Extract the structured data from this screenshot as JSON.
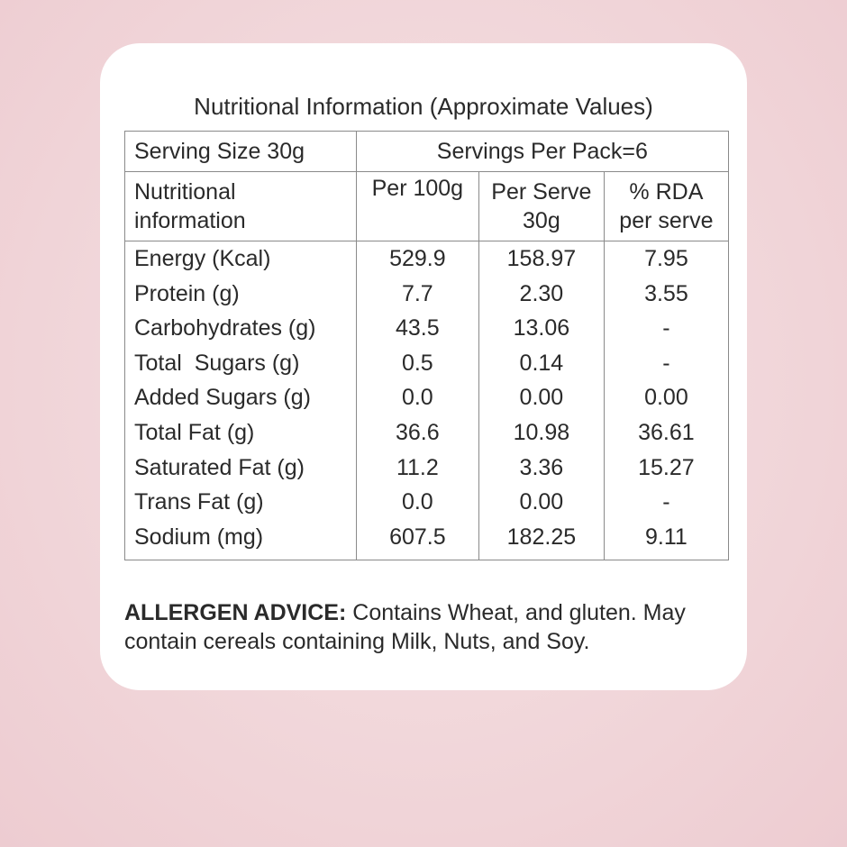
{
  "title": "Nutritional Information (Approximate Values)",
  "serving_size": "Serving Size 30g",
  "servings_per_pack": "Servings Per Pack=6",
  "headers": {
    "nutrient": [
      "Nutritional",
      "information"
    ],
    "per100": [
      "Per 100g"
    ],
    "perServe": [
      "Per Serve",
      "30g"
    ],
    "rda": [
      "% RDA",
      "per serve"
    ]
  },
  "rows": [
    {
      "name": "Energy (Kcal)",
      "per100": "529.9",
      "perServe": "158.97",
      "rda": "7.95"
    },
    {
      "name": "Protein (g)",
      "per100": "7.7",
      "perServe": "2.30",
      "rda": "3.55"
    },
    {
      "name": "Carbohydrates (g)",
      "per100": "43.5",
      "perServe": "13.06",
      "rda": "-"
    },
    {
      "name": "Total  Sugars (g)",
      "per100": "0.5",
      "perServe": "0.14",
      "rda": "-"
    },
    {
      "name": "Added Sugars (g)",
      "per100": "0.0",
      "perServe": "0.00",
      "rda": "0.00"
    },
    {
      "name": "Total Fat (g)",
      "per100": "36.6",
      "perServe": "10.98",
      "rda": "36.61"
    },
    {
      "name": "Saturated Fat (g)",
      "per100": "11.2",
      "perServe": "3.36",
      "rda": "15.27"
    },
    {
      "name": "Trans Fat (g)",
      "per100": "0.0",
      "perServe": "0.00",
      "rda": "-"
    },
    {
      "name": "Sodium (mg)",
      "per100": "607.5",
      "perServe": "182.25",
      "rda": "9.11"
    }
  ],
  "allergen": {
    "label": "ALLERGEN ADVICE:",
    "text": " Contains Wheat, and gluten. May contain cereals containing Milk, Nuts, and Soy."
  },
  "colors": {
    "background": "#f2d9dc",
    "card": "#ffffff",
    "border": "#8a8a8a",
    "text": "#2a2a2a"
  }
}
